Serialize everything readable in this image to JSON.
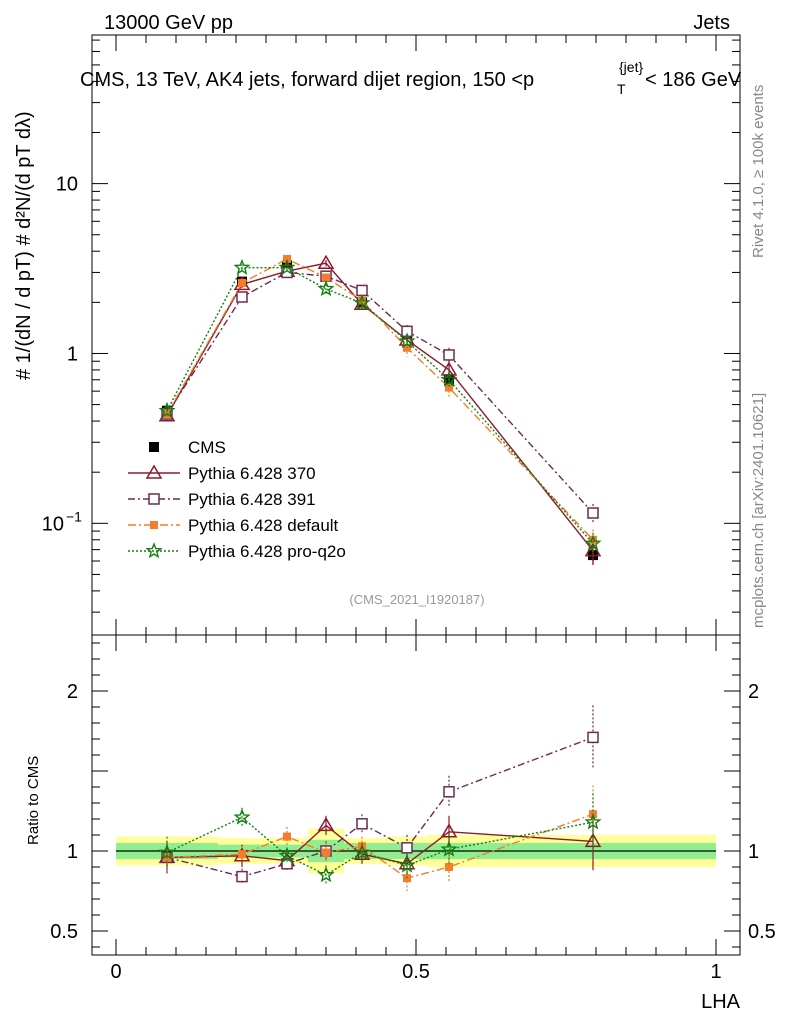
{
  "header": {
    "left": "13000 GeV pp",
    "right": "Jets"
  },
  "chart_data": [
    {
      "type": "line",
      "panel": "main",
      "title_parts": {
        "pre": "CMS, 13 TeV, AK4 jets, forward dijet region, 150 <p",
        "sub": "T",
        "sup": "{jet}",
        "post": "< 186 GeV"
      },
      "ylabel": "#  1/(dN / d pT)  # d²N/(d pT dλ)",
      "yscale": "log",
      "ylim": [
        0.022,
        75
      ],
      "xlim": [
        -0.04,
        1.04
      ],
      "y_ticks": [
        {
          "value": 0.1,
          "label": "10",
          "exp": "−1"
        },
        {
          "value": 1,
          "label": "1",
          "exp": ""
        },
        {
          "value": 10,
          "label": "10",
          "exp": ""
        }
      ],
      "series": [
        {
          "name": "CMS",
          "color": "#000000",
          "marker": "square-filled",
          "dash": "",
          "line": false,
          "points": [
            [
              0.085,
              0.46
            ],
            [
              0.21,
              2.65
            ],
            [
              0.285,
              3.3
            ],
            [
              0.35,
              2.85
            ],
            [
              0.41,
              2.0
            ],
            [
              0.485,
              1.3
            ],
            [
              0.555,
              0.7
            ],
            [
              0.795,
              0.065
            ]
          ],
          "err": [
            0.03,
            0.12,
            0.15,
            0.15,
            0.1,
            0.1,
            0.06,
            0.008
          ]
        },
        {
          "name": "Pythia 6.428 370",
          "color": "#8b1a2b",
          "marker": "triangle-open",
          "dash": "",
          "line": true,
          "points": [
            [
              0.085,
              0.43
            ],
            [
              0.21,
              2.55
            ],
            [
              0.285,
              3.05
            ],
            [
              0.35,
              3.4
            ],
            [
              0.41,
              1.95
            ],
            [
              0.485,
              1.2
            ],
            [
              0.555,
              0.8
            ],
            [
              0.795,
              0.069
            ]
          ],
          "err": [
            0.03,
            0.12,
            0.15,
            0.15,
            0.12,
            0.12,
            0.1,
            0.012
          ]
        },
        {
          "name": "Pythia 6.428 391",
          "color": "#6b2c4f",
          "marker": "square-open",
          "dash": "7,3,2,3",
          "line": true,
          "points": [
            [
              0.085,
              0.44
            ],
            [
              0.21,
              2.15
            ],
            [
              0.285,
              3.0
            ],
            [
              0.35,
              2.85
            ],
            [
              0.41,
              2.35
            ],
            [
              0.485,
              1.35
            ],
            [
              0.555,
              0.98
            ],
            [
              0.795,
              0.115
            ]
          ],
          "err": [
            0.03,
            0.1,
            0.15,
            0.15,
            0.12,
            0.12,
            0.1,
            0.015
          ]
        },
        {
          "name": "Pythia 6.428 default",
          "color": "#f47c2a",
          "marker": "square-filled-small",
          "dash": "8,3,2,3",
          "line": true,
          "points": [
            [
              0.085,
              0.44
            ],
            [
              0.21,
              2.6
            ],
            [
              0.285,
              3.6
            ],
            [
              0.35,
              2.8
            ],
            [
              0.41,
              2.05
            ],
            [
              0.485,
              1.08
            ],
            [
              0.555,
              0.63
            ],
            [
              0.795,
              0.08
            ]
          ],
          "err": [
            0.03,
            0.12,
            0.15,
            0.15,
            0.12,
            0.12,
            0.08,
            0.012
          ]
        },
        {
          "name": "Pythia 6.428 pro-q2o",
          "color": "#118011",
          "marker": "star",
          "dash": "2,2",
          "line": true,
          "points": [
            [
              0.085,
              0.46
            ],
            [
              0.21,
              3.2
            ],
            [
              0.285,
              3.2
            ],
            [
              0.35,
              2.4
            ],
            [
              0.41,
              1.98
            ],
            [
              0.485,
              1.18
            ],
            [
              0.555,
              0.7
            ],
            [
              0.795,
              0.076
            ]
          ],
          "err": [
            0.03,
            0.15,
            0.15,
            0.15,
            0.1,
            0.1,
            0.07,
            0.012
          ]
        }
      ]
    },
    {
      "type": "line",
      "panel": "ratio",
      "ylabel": "Ratio to CMS",
      "xlabel": "LHA",
      "ylim": [
        0.35,
        2.35
      ],
      "xlim": [
        -0.04,
        1.04
      ],
      "x_ticks": [
        {
          "value": 0,
          "label": "0"
        },
        {
          "value": 0.5,
          "label": "0.5"
        },
        {
          "value": 1,
          "label": "1"
        }
      ],
      "y_ticks": [
        {
          "value": 0.5,
          "label": "0.5"
        },
        {
          "value": 1,
          "label": "1"
        },
        {
          "value": 2,
          "label": "2"
        }
      ],
      "bands": [
        {
          "x0": 0.0,
          "x1": 0.17,
          "stat": [
            0.95,
            1.05
          ],
          "total": [
            0.91,
            1.09
          ]
        },
        {
          "x0": 0.17,
          "x1": 0.25,
          "stat": [
            0.96,
            1.04
          ],
          "total": [
            0.92,
            1.08
          ]
        },
        {
          "x0": 0.25,
          "x1": 0.32,
          "stat": [
            0.96,
            1.04
          ],
          "total": [
            0.92,
            1.08
          ]
        },
        {
          "x0": 0.32,
          "x1": 0.38,
          "stat": [
            0.93,
            1.07
          ],
          "total": [
            0.86,
            1.14
          ]
        },
        {
          "x0": 0.38,
          "x1": 0.45,
          "stat": [
            0.95,
            1.05
          ],
          "total": [
            0.92,
            1.08
          ]
        },
        {
          "x0": 0.45,
          "x1": 0.52,
          "stat": [
            0.95,
            1.05
          ],
          "total": [
            0.91,
            1.09
          ]
        },
        {
          "x0": 0.52,
          "x1": 0.59,
          "stat": [
            0.95,
            1.05
          ],
          "total": [
            0.9,
            1.1
          ]
        },
        {
          "x0": 0.59,
          "x1": 1.0,
          "stat": [
            0.95,
            1.05
          ],
          "total": [
            0.9,
            1.1
          ]
        }
      ],
      "series": [
        {
          "name": "Pythia 6.428 370",
          "color": "#8b1a2b",
          "marker": "triangle-open",
          "dash": "",
          "line": true,
          "points": [
            [
              0.085,
              0.96
            ],
            [
              0.21,
              0.97
            ],
            [
              0.285,
              0.94
            ],
            [
              0.35,
              1.16
            ],
            [
              0.41,
              0.98
            ],
            [
              0.485,
              0.92
            ],
            [
              0.555,
              1.12
            ],
            [
              0.795,
              1.06
            ]
          ],
          "err": [
            0.1,
            0.07,
            0.05,
            0.06,
            0.06,
            0.08,
            0.1,
            0.18
          ]
        },
        {
          "name": "Pythia 6.428 391",
          "color": "#6b2c4f",
          "marker": "square-open",
          "dash": "7,3,2,3",
          "line": true,
          "points": [
            [
              0.085,
              0.96
            ],
            [
              0.21,
              0.84
            ],
            [
              0.285,
              0.92
            ],
            [
              0.35,
              1.0
            ],
            [
              0.41,
              1.17
            ],
            [
              0.485,
              1.02
            ],
            [
              0.555,
              1.37
            ],
            [
              0.795,
              1.71
            ]
          ],
          "err": [
            0.1,
            0.05,
            0.05,
            0.06,
            0.06,
            0.08,
            0.1,
            0.2
          ]
        },
        {
          "name": "Pythia 6.428 default",
          "color": "#f47c2a",
          "marker": "square-filled-small",
          "dash": "8,3,2,3",
          "line": true,
          "points": [
            [
              0.085,
              0.96
            ],
            [
              0.21,
              0.98
            ],
            [
              0.285,
              1.09
            ],
            [
              0.35,
              0.99
            ],
            [
              0.41,
              1.03
            ],
            [
              0.485,
              0.83
            ],
            [
              0.555,
              0.9
            ],
            [
              0.795,
              1.23
            ]
          ],
          "err": [
            0.1,
            0.05,
            0.06,
            0.06,
            0.06,
            0.08,
            0.1,
            0.18
          ]
        },
        {
          "name": "Pythia 6.428 pro-q2o",
          "color": "#118011",
          "marker": "star",
          "dash": "2,2",
          "line": true,
          "points": [
            [
              0.085,
              0.99
            ],
            [
              0.21,
              1.21
            ],
            [
              0.285,
              0.97
            ],
            [
              0.35,
              0.85
            ],
            [
              0.41,
              0.99
            ],
            [
              0.485,
              0.91
            ],
            [
              0.555,
              1.01
            ],
            [
              0.795,
              1.18
            ]
          ],
          "err": [
            0.1,
            0.06,
            0.05,
            0.06,
            0.06,
            0.08,
            0.1,
            0.18
          ]
        }
      ]
    }
  ],
  "legend": {
    "items": [
      {
        "label": "CMS"
      },
      {
        "label": "Pythia 6.428 370"
      },
      {
        "label": "Pythia 6.428 391"
      },
      {
        "label": "Pythia 6.428 default"
      },
      {
        "label": "Pythia 6.428 pro-q2o"
      }
    ]
  },
  "watermark": "(CMS_2021_I1920187)",
  "side_text_top": "Rivet 4.1.0, ≥ 100k events",
  "side_text_bottom": "mcplots.cern.ch [arXiv:2401.10621]",
  "colors": {
    "band_stat": "#90ee90",
    "band_total": "#ffff99",
    "frame": "#000000"
  }
}
